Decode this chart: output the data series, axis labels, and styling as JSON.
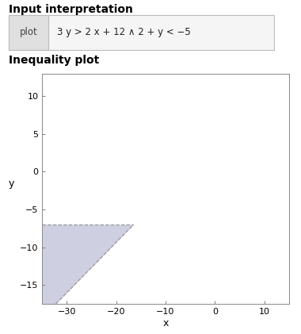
{
  "title_top": "Input interpretation",
  "section2_title": "Inequality plot",
  "xlabel": "x",
  "ylabel": "y",
  "xlim": [
    -35,
    15
  ],
  "ylim": [
    -17.5,
    13
  ],
  "xticks": [
    -30,
    -20,
    -10,
    0,
    10
  ],
  "yticks": [
    -15,
    -10,
    -5,
    0,
    5,
    10
  ],
  "shaded_color": "#b0b0d0",
  "shaded_alpha": 0.6,
  "line2_y": -7.0,
  "x_intersect": -16.5,
  "ylim_bottom_intersect_x": -32.25,
  "background_color": "#ffffff",
  "border_color": "#bbbbbb",
  "tick_fontsize": 8,
  "label_fontsize": 9,
  "title_fontsize": 10
}
